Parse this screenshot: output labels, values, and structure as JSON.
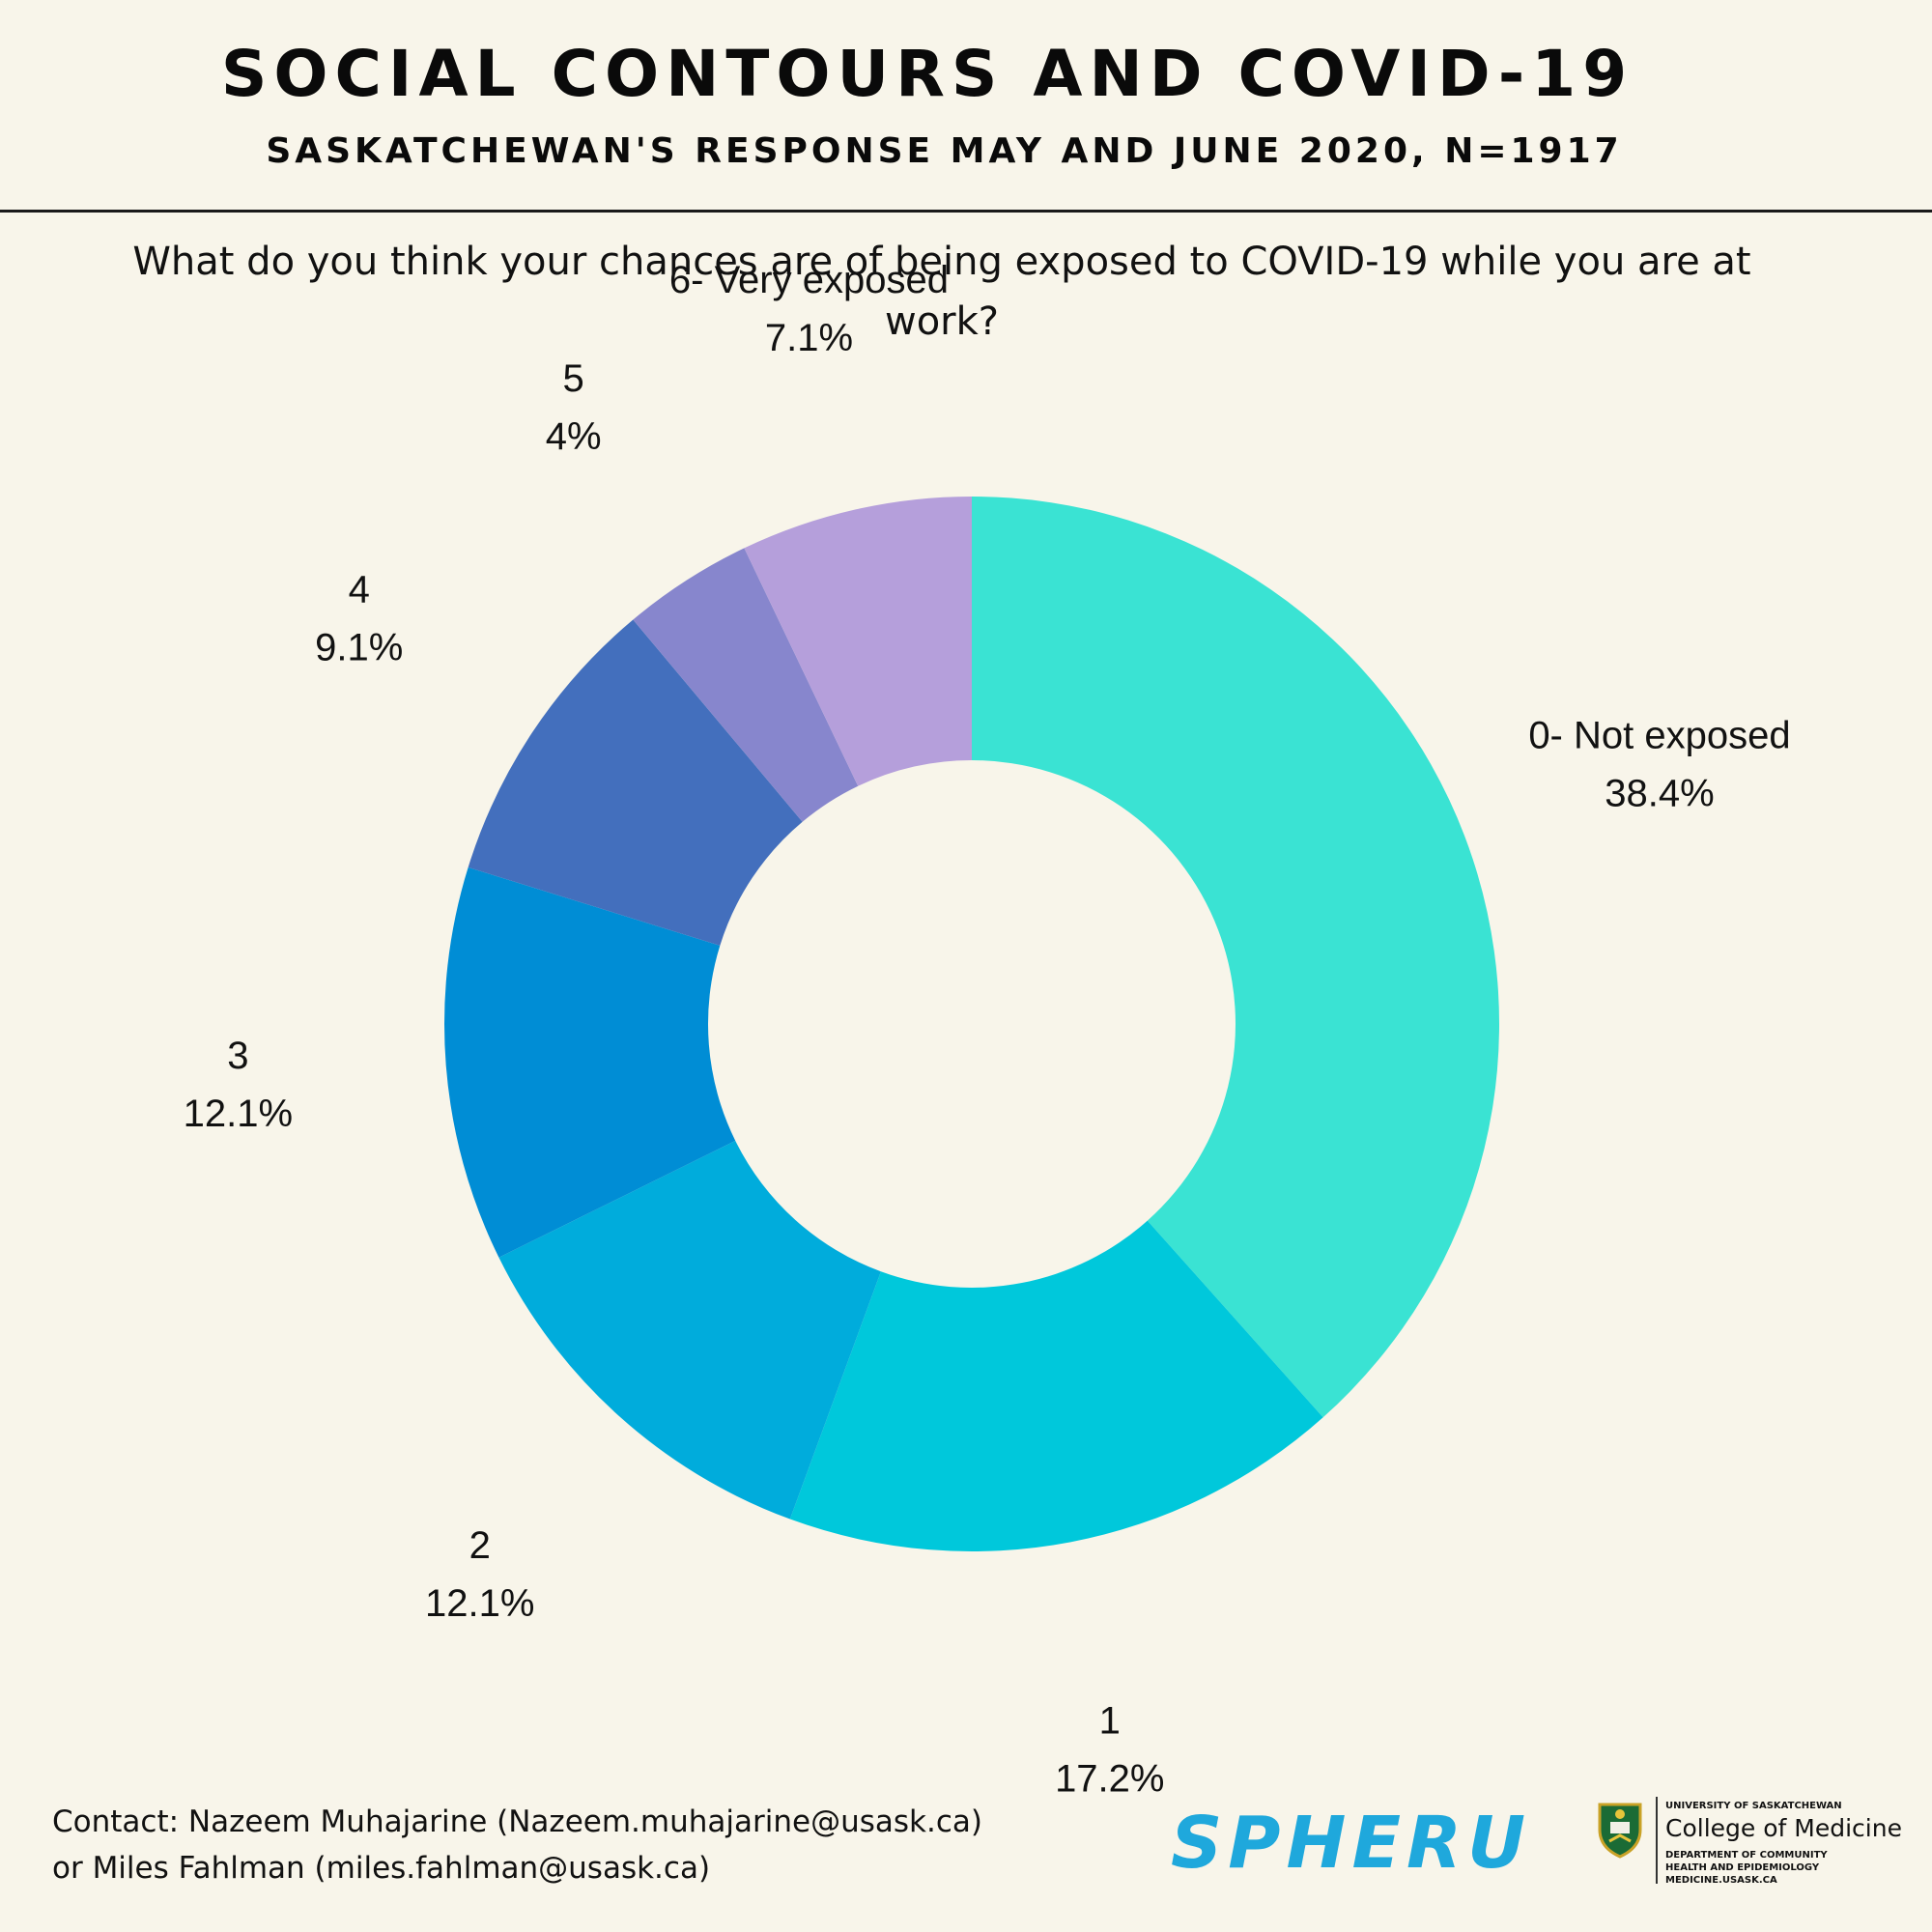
{
  "header": {
    "title": "SOCIAL CONTOURS AND COVID-19",
    "subtitle": "SASKATCHEWAN'S RESPONSE MAY AND JUNE 2020, N=1917"
  },
  "question": "What do you think your chances are of being exposed to COVID-19 while you are at work?",
  "chart_data": {
    "type": "pie",
    "donut": true,
    "title": "What do you think your chances are of being exposed to COVID-19 while you are at work?",
    "categories": [
      "0- Not exposed",
      "1",
      "2",
      "3",
      "4",
      "5",
      "6- Very exposed"
    ],
    "values": [
      38.4,
      17.2,
      12.1,
      12.1,
      9.1,
      4,
      7.1
    ],
    "value_labels": [
      "38.4%",
      "17.2%",
      "12.1%",
      "12.1%",
      "9.1%",
      "4%",
      "7.1%"
    ],
    "colors": [
      "#3ae3d3",
      "#00c8db",
      "#00acdc",
      "#008dd5",
      "#436fbd",
      "#8786cd",
      "#b59fdb"
    ],
    "start": "12 o'clock",
    "direction": "clockwise",
    "legend": "none"
  },
  "footer": {
    "contact_line1": "Contact: Nazeem Muhajarine (Nazeem.muhajarine@usask.ca)",
    "contact_line2": "or Miles Fahlman (miles.fahlman@usask.ca)",
    "spheru_logo": "SPHERU",
    "uofs_small": "UNIVERSITY OF SASKATCHEWAN",
    "uofs_college": "College of Medicine",
    "uofs_dept1": "DEPARTMENT OF COMMUNITY",
    "uofs_dept2": "HEALTH AND EPIDEMIOLOGY",
    "uofs_url": "MEDICINE.USASK.CA"
  }
}
